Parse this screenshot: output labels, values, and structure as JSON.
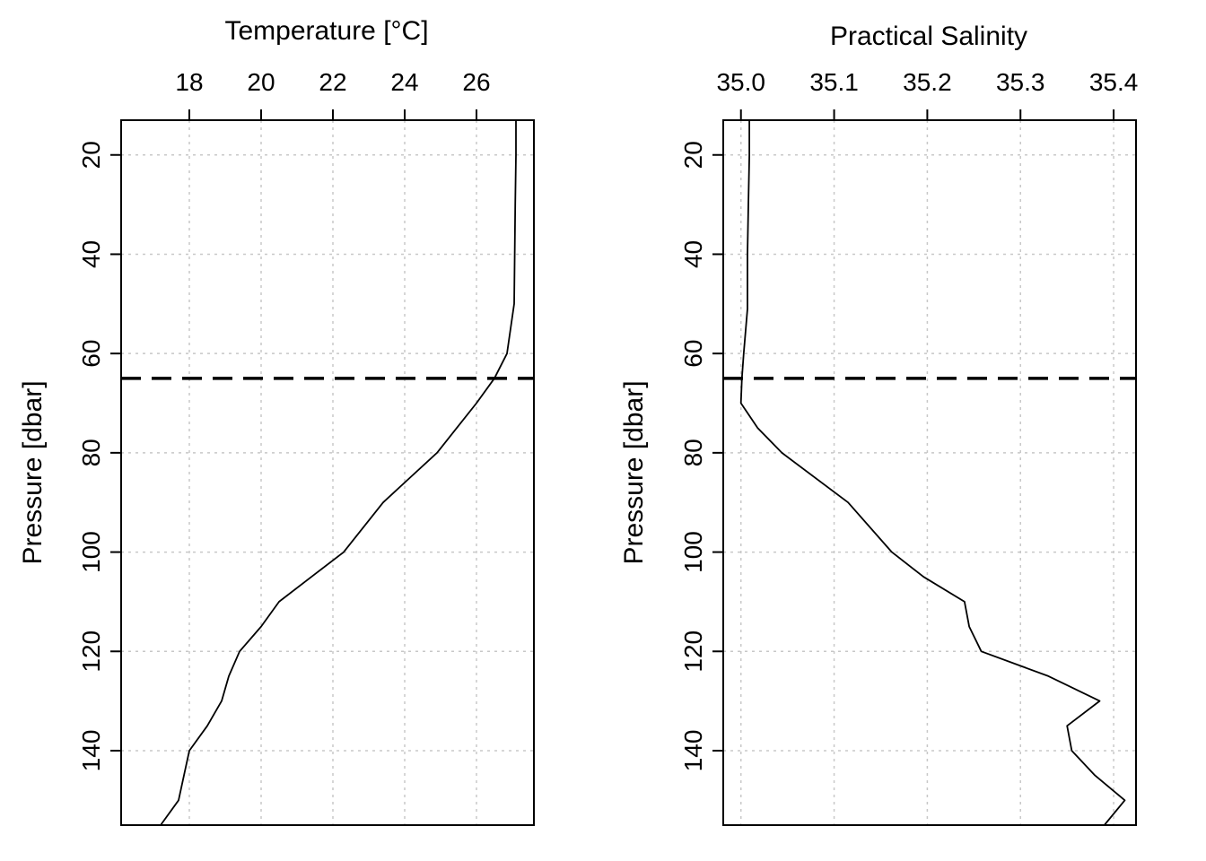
{
  "chart_data": [
    {
      "type": "line",
      "title": "",
      "xlabel": "Temperature [°C]",
      "ylabel": "Pressure [dbar]",
      "x_axis_position": "top",
      "y_axis_reversed": true,
      "xlim": [
        16.1,
        27.6
      ],
      "ylim": [
        155,
        13
      ],
      "x_ticks": [
        18,
        20,
        22,
        24,
        26
      ],
      "x_tick_labels": [
        "18",
        "20",
        "22",
        "24",
        "26"
      ],
      "y_ticks": [
        20,
        40,
        60,
        80,
        100,
        120,
        140
      ],
      "y_tick_labels": [
        "20",
        "40",
        "60",
        "80",
        "100",
        "120",
        "140"
      ],
      "grid": true,
      "series": [
        {
          "x": [
            27.1,
            27.1,
            27.08,
            27.05,
            26.85,
            26.5,
            26.0,
            25.45,
            24.9,
            24.15,
            23.4,
            22.3,
            21.4,
            20.5,
            20.0,
            19.4,
            19.1,
            18.9,
            18.5,
            18.0,
            17.85,
            17.7,
            17.2
          ],
          "y": [
            13,
            20,
            30,
            50,
            60,
            65,
            70,
            75,
            80,
            85,
            90,
            100,
            105,
            110,
            115,
            120,
            125,
            130,
            135,
            140,
            145,
            150,
            155
          ]
        }
      ],
      "hline": 65
    },
    {
      "type": "line",
      "title": "",
      "xlabel": "Practical Salinity",
      "ylabel": "Pressure [dbar]",
      "x_axis_position": "top",
      "y_axis_reversed": true,
      "xlim": [
        34.981,
        35.424
      ],
      "ylim": [
        155,
        13
      ],
      "x_ticks": [
        35.0,
        35.1,
        35.2,
        35.3,
        35.4
      ],
      "x_tick_labels": [
        "35.0",
        "35.1",
        "35.2",
        "35.3",
        "35.4"
      ],
      "y_ticks": [
        20,
        40,
        60,
        80,
        100,
        120,
        140
      ],
      "y_tick_labels": [
        "20",
        "40",
        "60",
        "80",
        "100",
        "120",
        "140"
      ],
      "grid": true,
      "series": [
        {
          "x": [
            35.009,
            35.009,
            35.008,
            35.007,
            35.007,
            35.003,
            35.001,
            35.0,
            35.018,
            35.044,
            35.115,
            35.162,
            35.196,
            35.24,
            35.245,
            35.258,
            35.33,
            35.385,
            35.35,
            35.355,
            35.38,
            35.412,
            35.39
          ],
          "y": [
            13,
            20,
            30,
            40,
            51,
            60,
            65,
            70,
            75,
            80,
            90,
            100,
            105,
            110,
            115,
            120,
            125,
            130,
            135,
            140,
            145,
            150,
            155
          ]
        }
      ],
      "hline": 65
    }
  ]
}
